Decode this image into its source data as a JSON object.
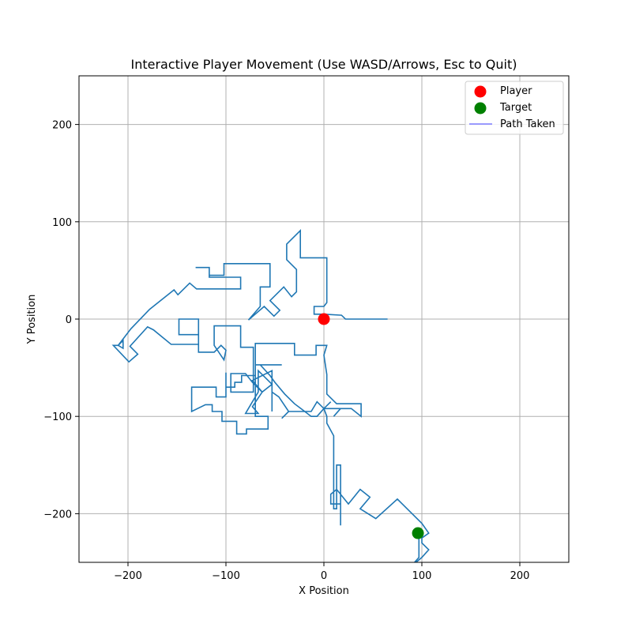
{
  "chart_data": {
    "type": "line",
    "title": "Interactive Player Movement (Use WASD/Arrows, Esc to Quit)",
    "xlabel": "X Position",
    "ylabel": "Y Position",
    "xlim": [
      -250,
      250
    ],
    "ylim": [
      -250,
      250
    ],
    "xticks": [
      -200,
      -100,
      0,
      100,
      200
    ],
    "yticks": [
      -200,
      -100,
      0,
      100,
      200
    ],
    "x_tick_labels": [
      "−200",
      "−100",
      "0",
      "100",
      "200"
    ],
    "y_tick_labels": [
      "−200",
      "−100",
      "0",
      "100",
      "200"
    ],
    "grid": true,
    "legend_position": "top-right",
    "legend": [
      {
        "label": "Player",
        "marker": "circle",
        "color": "#ff0000"
      },
      {
        "label": "Target",
        "marker": "circle",
        "color": "#008000"
      },
      {
        "label": "Path Taken",
        "marker": "line",
        "color": "#7b7bff"
      }
    ],
    "player": {
      "x": 0,
      "y": 0,
      "color": "#ff0000"
    },
    "target": {
      "x": 96,
      "y": -220,
      "color": "#008000"
    },
    "path_color": "#1f77b4",
    "path": [
      [
        65,
        0
      ],
      [
        22,
        0
      ],
      [
        18,
        4
      ],
      [
        0,
        5
      ],
      [
        -10,
        5
      ],
      [
        -10,
        13
      ],
      [
        0,
        13
      ],
      [
        3,
        17
      ],
      [
        3,
        63
      ],
      [
        -24,
        63
      ],
      [
        -24,
        91
      ],
      [
        -38,
        77
      ],
      [
        -38,
        61
      ],
      [
        -28,
        51
      ],
      [
        -28,
        28
      ],
      [
        -33,
        23
      ],
      [
        -41,
        33
      ],
      [
        -55,
        19
      ],
      [
        -45,
        9
      ],
      [
        -51,
        3
      ],
      [
        -61,
        13
      ],
      [
        -77,
        -1
      ],
      [
        -65,
        13
      ],
      [
        -65,
        33
      ],
      [
        -55,
        33
      ],
      [
        -55,
        57
      ],
      [
        -102,
        57
      ],
      [
        -102,
        45
      ],
      [
        -117,
        45
      ],
      [
        -117,
        53
      ],
      [
        -131,
        53
      ],
      [
        -117,
        53
      ],
      [
        -117,
        43
      ],
      [
        -85,
        43
      ],
      [
        -85,
        31
      ],
      [
        -130,
        31
      ],
      [
        -137,
        37
      ],
      [
        -149,
        25
      ],
      [
        -153,
        30
      ],
      [
        -178,
        10
      ],
      [
        -197,
        -10
      ],
      [
        -210,
        -27
      ],
      [
        -205,
        -30
      ],
      [
        -205,
        -22
      ],
      [
        -210,
        -27
      ],
      [
        -215,
        -27
      ],
      [
        -199,
        -44
      ],
      [
        -190,
        -36
      ],
      [
        -198,
        -28
      ],
      [
        -180,
        -8
      ],
      [
        -174,
        -11
      ],
      [
        -156,
        -26
      ],
      [
        -128,
        -26
      ],
      [
        -128,
        -16
      ],
      [
        -148,
        -16
      ],
      [
        -148,
        0
      ],
      [
        -128,
        0
      ],
      [
        -128,
        -34
      ],
      [
        -112,
        -34
      ],
      [
        -105,
        -27
      ],
      [
        -100,
        -32
      ],
      [
        -102,
        -42
      ],
      [
        -112,
        -27
      ],
      [
        -112,
        -7
      ],
      [
        -85,
        -7
      ],
      [
        -85,
        -29
      ],
      [
        -72,
        -29
      ],
      [
        -72,
        -75
      ],
      [
        -95,
        -75
      ],
      [
        -95,
        -56
      ],
      [
        -80,
        -56
      ],
      [
        -73,
        -65
      ],
      [
        -63,
        -75
      ],
      [
        -73,
        -90
      ],
      [
        -67,
        -97
      ],
      [
        -80,
        -97
      ],
      [
        -73,
        -85
      ],
      [
        -67,
        -75
      ],
      [
        -67,
        -53
      ],
      [
        -53,
        -67
      ],
      [
        -63,
        -75
      ],
      [
        -73,
        -63
      ],
      [
        -53,
        -53
      ],
      [
        -53,
        -95
      ],
      [
        -53,
        -75
      ],
      [
        -46,
        -80
      ],
      [
        -36,
        -95
      ],
      [
        -43,
        -102
      ],
      [
        -36,
        -95
      ],
      [
        -28,
        -95
      ],
      [
        -13,
        -95
      ],
      [
        -7,
        -85
      ],
      [
        0,
        -92
      ],
      [
        7,
        -85
      ],
      [
        0,
        -92
      ],
      [
        7,
        -92
      ],
      [
        17,
        -92
      ],
      [
        10,
        -100
      ],
      [
        17,
        -92
      ],
      [
        28,
        -92
      ],
      [
        38,
        -100
      ],
      [
        38,
        -87
      ],
      [
        13,
        -87
      ],
      [
        3,
        -77
      ],
      [
        3,
        -57
      ],
      [
        0,
        -37
      ],
      [
        3,
        -27
      ],
      [
        -8,
        -27
      ],
      [
        -8,
        -37
      ],
      [
        -30,
        -37
      ],
      [
        -30,
        -25
      ],
      [
        -70,
        -25
      ],
      [
        -70,
        -100
      ],
      [
        -57,
        -100
      ],
      [
        -57,
        -113
      ],
      [
        -79,
        -113
      ],
      [
        -79,
        -118
      ],
      [
        -89,
        -118
      ],
      [
        -89,
        -105
      ],
      [
        -104,
        -105
      ],
      [
        -104,
        -95
      ],
      [
        -114,
        -95
      ],
      [
        -114,
        -88
      ],
      [
        -121,
        -88
      ],
      [
        -135,
        -95
      ],
      [
        -135,
        -70
      ],
      [
        -110,
        -70
      ],
      [
        -110,
        -80
      ],
      [
        -100,
        -80
      ],
      [
        -100,
        -55
      ],
      [
        -100,
        -70
      ],
      [
        -91,
        -70
      ],
      [
        -91,
        -65
      ],
      [
        -84,
        -65
      ],
      [
        -84,
        -58
      ],
      [
        -70,
        -58
      ],
      [
        -70,
        -47
      ],
      [
        -43,
        -47
      ],
      [
        -65,
        -47
      ],
      [
        -55,
        -58
      ],
      [
        -50,
        -65
      ],
      [
        -40,
        -77
      ],
      [
        -30,
        -87
      ],
      [
        -13,
        -100
      ],
      [
        -7,
        -100
      ],
      [
        0,
        -92
      ],
      [
        3,
        -100
      ],
      [
        3,
        -107
      ],
      [
        10,
        -120
      ],
      [
        10,
        -195
      ],
      [
        13,
        -195
      ],
      [
        13,
        -150
      ],
      [
        17,
        -150
      ],
      [
        17,
        -212
      ],
      [
        17,
        -190
      ],
      [
        7,
        -190
      ],
      [
        7,
        -180
      ],
      [
        13,
        -175
      ],
      [
        25,
        -190
      ],
      [
        37,
        -175
      ],
      [
        47,
        -183
      ],
      [
        37,
        -195
      ],
      [
        53,
        -205
      ],
      [
        75,
        -185
      ],
      [
        100,
        -210
      ],
      [
        107,
        -220
      ],
      [
        100,
        -225
      ],
      [
        100,
        -230
      ],
      [
        107,
        -237
      ],
      [
        100,
        -245
      ],
      [
        88,
        -255
      ],
      [
        97,
        -245
      ],
      [
        97,
        -222
      ]
    ]
  }
}
